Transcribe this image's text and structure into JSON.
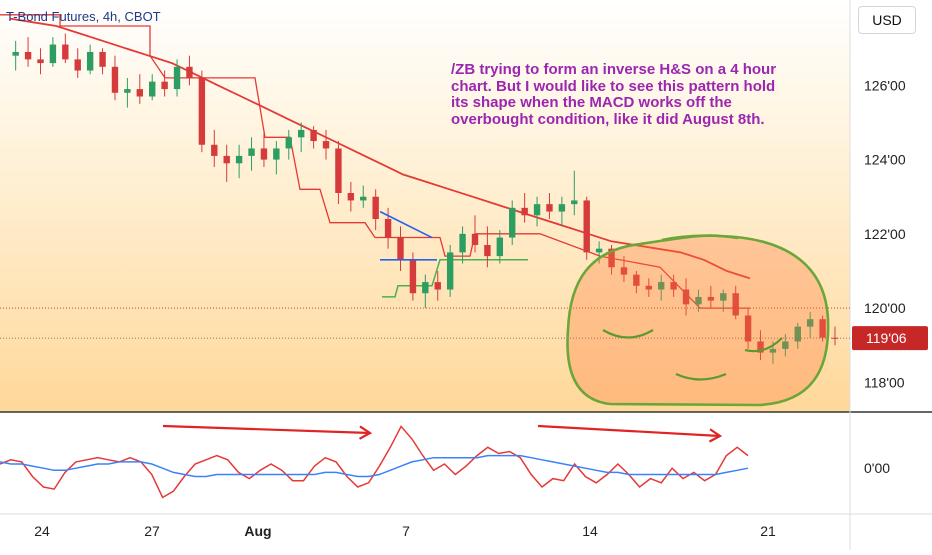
{
  "header": {
    "title": "T-Bond Futures, 4h, CBOT",
    "currency": "USD"
  },
  "annotation": {
    "text": "/ZB trying to form an inverse H&S on a 4 hour chart. But I would like to see this pattern hold its shape when the MACD works off the overbought condition, like it did August 8th."
  },
  "colors": {
    "up": "#2e9d62",
    "down": "#d63b3b",
    "price_badge": "#c62828",
    "ma": "#e53935",
    "macd": "#e53935",
    "signal": "#3b82f6",
    "green_line": "#4caf50",
    "blue_wedge": "#2563eb",
    "note": "#9b27b0"
  },
  "chart_data": [
    {
      "type": "candlestick",
      "y_ticks": [
        "126'00",
        "124'00",
        "122'00",
        "120'00",
        "118'00"
      ],
      "y_tick_values": [
        126,
        124,
        122,
        120,
        118
      ],
      "ylim": [
        117.2,
        128.3
      ],
      "x_ticks": [
        "24",
        "27",
        "Aug",
        "7",
        "14",
        "21"
      ],
      "last_price_label": "119'06",
      "last_price": 119.19,
      "candles": [
        [
          126.8,
          127.2,
          126.4,
          126.9
        ],
        [
          126.9,
          127.3,
          126.5,
          126.7
        ],
        [
          126.7,
          127.0,
          126.3,
          126.6
        ],
        [
          126.6,
          127.3,
          126.5,
          127.1
        ],
        [
          127.1,
          127.4,
          126.6,
          126.7
        ],
        [
          126.7,
          127.0,
          126.2,
          126.4
        ],
        [
          126.4,
          127.1,
          126.3,
          126.9
        ],
        [
          126.9,
          127.0,
          126.3,
          126.5
        ],
        [
          126.5,
          126.8,
          125.6,
          125.8
        ],
        [
          125.8,
          126.2,
          125.4,
          125.9
        ],
        [
          125.9,
          126.3,
          125.5,
          125.7
        ],
        [
          125.7,
          126.3,
          125.6,
          126.1
        ],
        [
          126.1,
          126.4,
          125.7,
          125.9
        ],
        [
          125.9,
          126.7,
          125.7,
          126.5
        ],
        [
          126.5,
          126.8,
          126.0,
          126.2
        ],
        [
          126.2,
          126.4,
          124.2,
          124.4
        ],
        [
          124.4,
          124.8,
          123.8,
          124.1
        ],
        [
          124.1,
          124.4,
          123.4,
          123.9
        ],
        [
          123.9,
          124.4,
          123.5,
          124.1
        ],
        [
          124.1,
          124.6,
          123.7,
          124.3
        ],
        [
          124.3,
          124.7,
          123.8,
          124.0
        ],
        [
          124.0,
          124.5,
          123.6,
          124.3
        ],
        [
          124.3,
          124.8,
          124.0,
          124.6
        ],
        [
          124.6,
          125.0,
          124.2,
          124.8
        ],
        [
          124.8,
          124.9,
          124.3,
          124.5
        ],
        [
          124.5,
          124.8,
          124.0,
          124.3
        ],
        [
          124.3,
          124.5,
          122.8,
          123.1
        ],
        [
          123.1,
          123.4,
          122.6,
          122.9
        ],
        [
          122.9,
          123.3,
          122.7,
          123.0
        ],
        [
          123.0,
          123.2,
          122.1,
          122.4
        ],
        [
          122.4,
          122.7,
          121.6,
          121.9
        ],
        [
          121.9,
          122.2,
          121.0,
          121.3
        ],
        [
          121.3,
          121.5,
          120.2,
          120.4
        ],
        [
          120.4,
          120.9,
          120.0,
          120.7
        ],
        [
          120.7,
          121.0,
          120.2,
          120.5
        ],
        [
          120.5,
          121.7,
          120.3,
          121.5
        ],
        [
          121.5,
          122.2,
          121.2,
          122.0
        ],
        [
          122.0,
          122.5,
          121.5,
          121.7
        ],
        [
          121.7,
          122.2,
          121.1,
          121.4
        ],
        [
          121.4,
          122.1,
          121.2,
          121.9
        ],
        [
          121.9,
          122.9,
          121.7,
          122.7
        ],
        [
          122.7,
          123.1,
          122.3,
          122.5
        ],
        [
          122.5,
          123.0,
          122.2,
          122.8
        ],
        [
          122.8,
          123.1,
          122.4,
          122.6
        ],
        [
          122.6,
          123.0,
          122.2,
          122.8
        ],
        [
          122.8,
          123.7,
          122.5,
          122.9
        ],
        [
          122.9,
          123.0,
          121.3,
          121.5
        ],
        [
          121.5,
          121.8,
          121.2,
          121.6
        ],
        [
          121.6,
          121.7,
          120.9,
          121.1
        ],
        [
          121.1,
          121.4,
          120.7,
          120.9
        ],
        [
          120.9,
          121.0,
          120.4,
          120.6
        ],
        [
          120.6,
          120.8,
          120.3,
          120.5
        ],
        [
          120.5,
          120.9,
          120.2,
          120.7
        ],
        [
          120.7,
          120.9,
          120.3,
          120.5
        ],
        [
          120.5,
          120.8,
          119.8,
          120.1
        ],
        [
          120.1,
          120.5,
          119.9,
          120.3
        ],
        [
          120.3,
          120.6,
          120.0,
          120.2
        ],
        [
          120.2,
          120.5,
          119.9,
          120.4
        ],
        [
          120.4,
          120.6,
          119.7,
          119.8
        ],
        [
          119.8,
          120.0,
          118.9,
          119.1
        ],
        [
          119.1,
          119.4,
          118.6,
          118.8
        ],
        [
          118.8,
          119.1,
          118.5,
          118.9
        ],
        [
          118.9,
          119.3,
          118.7,
          119.1
        ],
        [
          119.1,
          119.6,
          118.9,
          119.5
        ],
        [
          119.5,
          119.9,
          119.2,
          119.7
        ],
        [
          119.7,
          119.8,
          119.1,
          119.2
        ],
        [
          119.2,
          119.5,
          119.0,
          119.19
        ]
      ],
      "moving_average": [
        127.8,
        127.7,
        127.6,
        127.4,
        127.2,
        127.0,
        126.8,
        126.6,
        126.3,
        126.0,
        125.7,
        125.4,
        125.1,
        124.8,
        124.5,
        124.2,
        123.9,
        123.6,
        123.4,
        123.2,
        123.0,
        122.8,
        122.6,
        122.4,
        122.2,
        122.0,
        121.8,
        121.7,
        121.6,
        121.5,
        121.3,
        121.0,
        120.8
      ],
      "markers": [
        {
          "price": 120.0,
          "style": "dotted",
          "color": "#c62828"
        },
        {
          "price": 119.19,
          "style": "dotted",
          "color": "#555555"
        }
      ]
    },
    {
      "type": "line",
      "y_ticks": [
        "0'00"
      ],
      "series": [
        {
          "values": [
            0.2,
            0.4,
            0.3,
            -0.4,
            -0.9,
            -1.0,
            -0.2,
            0.3,
            0.4,
            0.5,
            0.4,
            0.3,
            0.5,
            0.3,
            -0.3,
            -1.4,
            -1.1,
            -0.4,
            0.2,
            0.4,
            0.6,
            0.4,
            -0.2,
            -0.5,
            -0.1,
            0.2,
            -0.1,
            -0.6,
            -0.6,
            0.1,
            0.5,
            0.3,
            -0.4,
            -0.9,
            -0.7,
            0.1,
            1.0,
            2.0,
            1.4,
            0.6,
            -0.1,
            0.2,
            -0.3,
            0.1,
            0.6,
            1.0,
            0.7,
            0.8,
            0.5,
            -0.3,
            -0.9,
            -0.5,
            -0.6,
            0.2,
            -0.4,
            -0.7,
            -0.3,
            0.2,
            -0.3,
            -0.9,
            -0.5,
            -0.7,
            0.0,
            -0.5,
            -0.2,
            -0.6,
            -0.3,
            0.6,
            1.0,
            0.6
          ]
        },
        {
          "values": [
            0.3,
            0.2,
            0.2,
            0.1,
            0.0,
            -0.1,
            -0.1,
            0.0,
            0.1,
            0.2,
            0.2,
            0.3,
            0.3,
            0.3,
            0.2,
            0.0,
            -0.2,
            -0.3,
            -0.4,
            -0.4,
            -0.3,
            -0.3,
            -0.3,
            -0.3,
            -0.3,
            -0.3,
            -0.3,
            -0.3,
            -0.3,
            -0.3,
            -0.2,
            -0.2,
            -0.3,
            -0.4,
            -0.4,
            -0.3,
            -0.1,
            0.1,
            0.3,
            0.4,
            0.5,
            0.5,
            0.5,
            0.5,
            0.5,
            0.6,
            0.6,
            0.6,
            0.6,
            0.5,
            0.4,
            0.3,
            0.2,
            0.1,
            0.0,
            -0.1,
            -0.2,
            -0.2,
            -0.3,
            -0.3,
            -0.3,
            -0.3,
            -0.3,
            -0.3,
            -0.3,
            -0.3,
            -0.3,
            -0.2,
            -0.1,
            0.0
          ]
        }
      ]
    }
  ]
}
